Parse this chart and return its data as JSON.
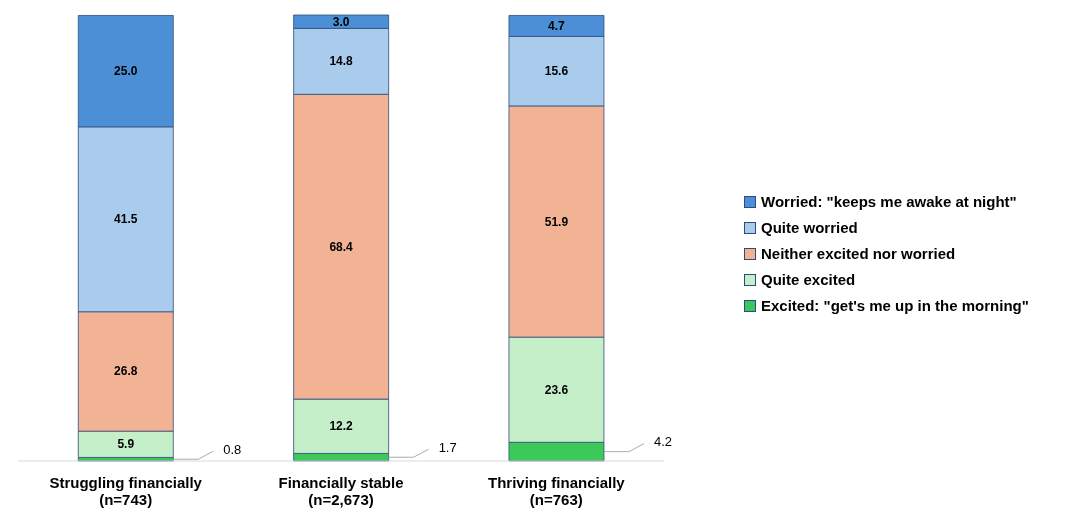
{
  "chart_data": {
    "type": "bar",
    "stacked": true,
    "legend": "right",
    "categories": [
      "Struggling financially\n(n=743)",
      "Financially stable\n(n=2,673)",
      "Thriving financially\n(n=763)"
    ],
    "series": [
      {
        "name": "Excited: \"get's me up in the morning\"",
        "color": "#3cc95a",
        "values": [
          0.8,
          1.7,
          4.2
        ],
        "value_labels": [
          "0.8",
          "1.7",
          "4.2"
        ]
      },
      {
        "name": "Quite excited",
        "color": "#c5efc9",
        "values": [
          5.9,
          12.2,
          23.6
        ],
        "value_labels": [
          "5.9",
          "12.2",
          "23.6"
        ]
      },
      {
        "name": "Neither excited nor worried",
        "color": "#f2b394",
        "values": [
          26.8,
          68.4,
          51.9
        ],
        "value_labels": [
          "26.8",
          "68.4",
          "51.9"
        ]
      },
      {
        "name": "Quite worried",
        "color": "#a9cbec",
        "values": [
          41.5,
          14.8,
          15.6
        ],
        "value_labels": [
          "41.5",
          "14.8",
          "15.6"
        ]
      },
      {
        "name": "Worried: \"keeps me awake at night\"",
        "color": "#4d8fd6",
        "values": [
          25.0,
          3.0,
          4.7
        ],
        "value_labels": [
          "25.0",
          "3.0",
          "4.7"
        ]
      }
    ]
  }
}
